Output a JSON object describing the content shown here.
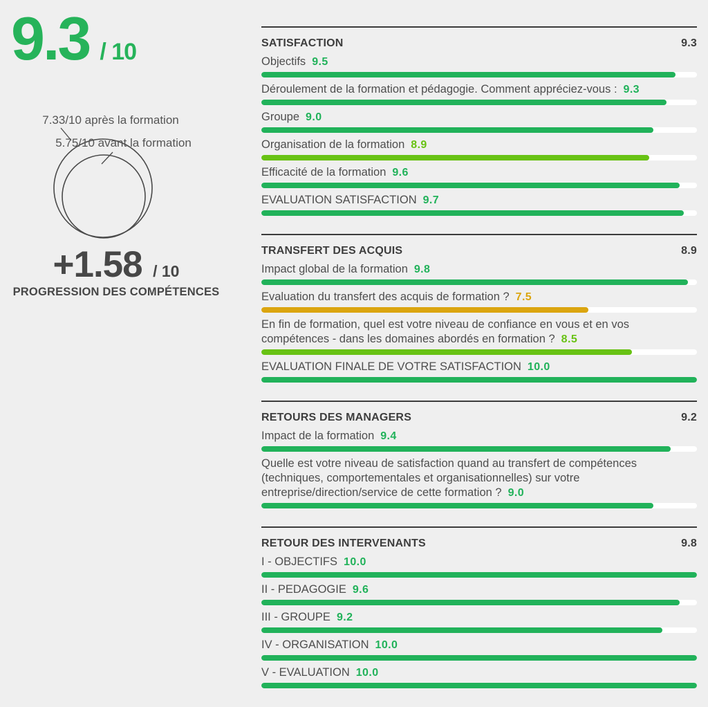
{
  "summary": {
    "overall_score": "9.3",
    "overall_denominator": "/ 10"
  },
  "progression": {
    "after_label": "7.33/10 après la formation",
    "before_label": "5.75/10 avant la formation",
    "delta": "+1.58",
    "delta_denominator": "/ 10",
    "title": "PROGRESSION DES COMPÉTENCES"
  },
  "colors": {
    "green": "#21b25a",
    "light_green": "#68c214",
    "amber": "#dba50f",
    "dark_text": "#474747",
    "label_text": "#4e4e4e",
    "rule": "#3c3c3c",
    "track": "#ffffff",
    "background": "#efefef",
    "circle_stroke": "#4a4a4a"
  },
  "chart_data": {
    "type": "bar",
    "orientation": "horizontal",
    "xlim": [
      0,
      10
    ],
    "overall_score": 9.3,
    "progression": {
      "before": 5.75,
      "after": 7.33,
      "delta": 1.58
    },
    "sections": [
      {
        "title": "SATISFACTION",
        "score": "9.3",
        "items": [
          {
            "label": "Objectifs",
            "value": 9.5,
            "display": "9.5",
            "color": "green"
          },
          {
            "label": "Déroulement de la formation et pédagogie. Comment appréciez-vous :",
            "value": 9.3,
            "display": "9.3",
            "color": "green"
          },
          {
            "label": "Groupe",
            "value": 9.0,
            "display": "9.0",
            "color": "green"
          },
          {
            "label": "Organisation de la formation",
            "value": 8.9,
            "display": "8.9",
            "color": "light_green"
          },
          {
            "label": "Efficacité de la formation",
            "value": 9.6,
            "display": "9.6",
            "color": "green"
          },
          {
            "label": "EVALUATION SATISFACTION",
            "value": 9.7,
            "display": "9.7",
            "color": "green"
          }
        ]
      },
      {
        "title": "TRANSFERT DES ACQUIS",
        "score": "8.9",
        "items": [
          {
            "label": "Impact global de la formation",
            "value": 9.8,
            "display": "9.8",
            "color": "green"
          },
          {
            "label": "Evaluation du transfert des acquis de formation ?",
            "value": 7.5,
            "display": "7.5",
            "color": "amber"
          },
          {
            "label": "En fin de formation, quel est votre niveau de confiance en vous et en vos compétences - dans les domaines abordés en formation ?",
            "value": 8.5,
            "display": "8.5",
            "color": "light_green"
          },
          {
            "label": "EVALUATION FINALE DE VOTRE SATISFACTION",
            "value": 10.0,
            "display": "10.0",
            "color": "green"
          }
        ]
      },
      {
        "title": "RETOURS DES MANAGERS",
        "score": "9.2",
        "items": [
          {
            "label": "Impact de la formation",
            "value": 9.4,
            "display": "9.4",
            "color": "green"
          },
          {
            "label": "Quelle est votre niveau de satisfaction quand au transfert de compétences (techniques, comportementales et organisationnelles) sur votre entreprise/direction/service de cette formation ?",
            "value": 9.0,
            "display": "9.0",
            "color": "green"
          }
        ]
      },
      {
        "title": "RETOUR DES INTERVENANTS",
        "score": "9.8",
        "items": [
          {
            "label": "I - OBJECTIFS",
            "value": 10.0,
            "display": "10.0",
            "color": "green"
          },
          {
            "label": "II - PEDAGOGIE",
            "value": 9.6,
            "display": "9.6",
            "color": "green"
          },
          {
            "label": "III - GROUPE",
            "value": 9.2,
            "display": "9.2",
            "color": "green"
          },
          {
            "label": "IV - ORGANISATION",
            "value": 10.0,
            "display": "10.0",
            "color": "green"
          },
          {
            "label": "V - EVALUATION",
            "value": 10.0,
            "display": "10.0",
            "color": "green"
          }
        ]
      }
    ]
  }
}
